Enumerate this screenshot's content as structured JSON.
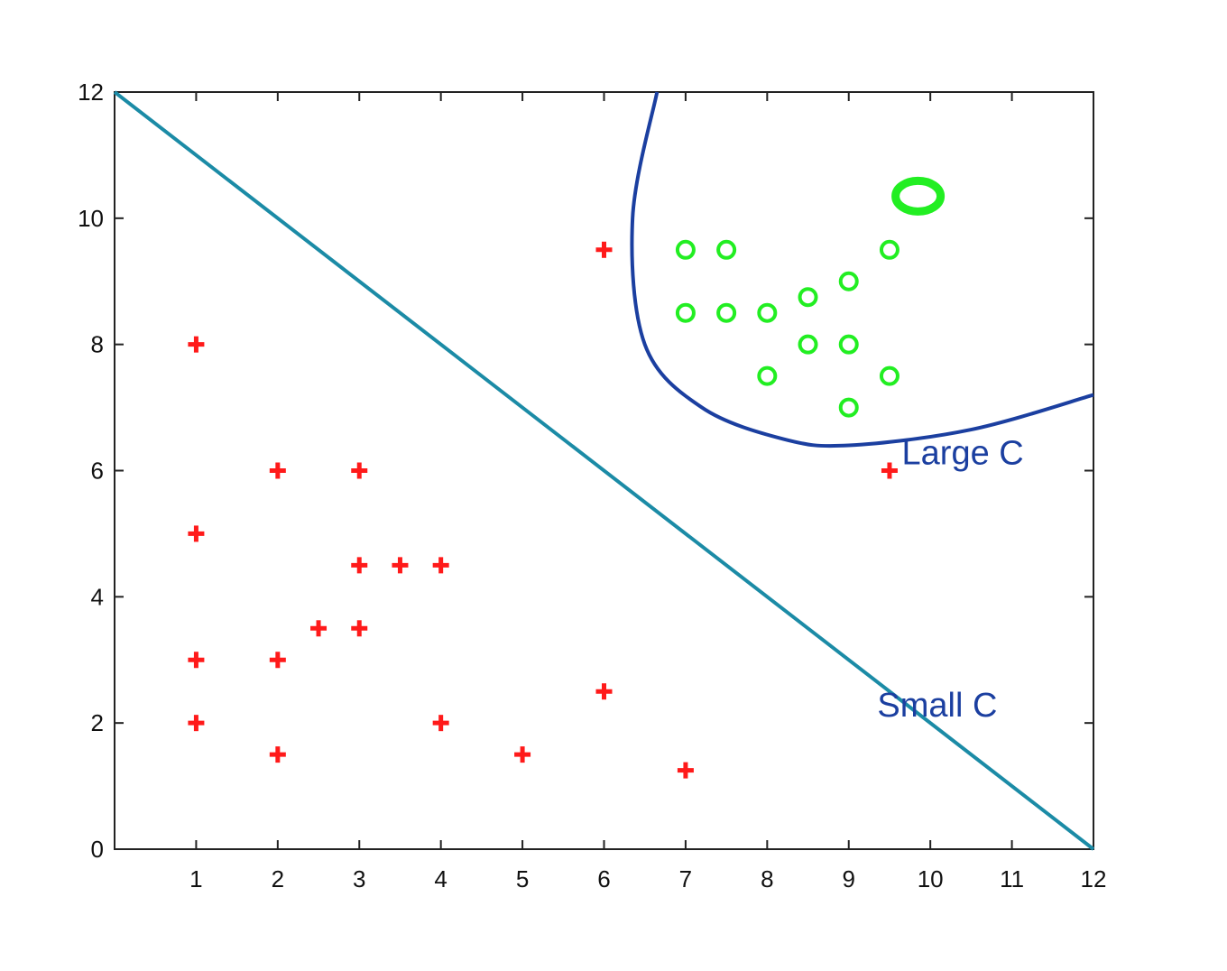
{
  "chart_data": {
    "type": "scatter",
    "title": "",
    "xlabel": "",
    "ylabel": "",
    "xlim": [
      0,
      12
    ],
    "ylim": [
      0,
      12
    ],
    "x_ticks": [
      1,
      2,
      3,
      4,
      5,
      6,
      7,
      8,
      9,
      10,
      11,
      12
    ],
    "y_ticks": [
      0,
      2,
      4,
      6,
      8,
      10,
      12
    ],
    "grid": false,
    "series": [
      {
        "marker": "plus",
        "color": "#ff1a1a",
        "points": [
          [
            1,
            8
          ],
          [
            1,
            5
          ],
          [
            1,
            3
          ],
          [
            1,
            2
          ],
          [
            2,
            6
          ],
          [
            2,
            3
          ],
          [
            2,
            1.5
          ],
          [
            2.5,
            3.5
          ],
          [
            3,
            6
          ],
          [
            3,
            4.5
          ],
          [
            3,
            3.5
          ],
          [
            3.5,
            4.5
          ],
          [
            4,
            4.5
          ],
          [
            4,
            2
          ],
          [
            5,
            1.5
          ],
          [
            6,
            9.5
          ],
          [
            6,
            2.5
          ],
          [
            7,
            1.25
          ],
          [
            9.5,
            6
          ]
        ]
      },
      {
        "marker": "circle",
        "color": "#22ee22",
        "points": [
          [
            7,
            9.5
          ],
          [
            7.5,
            9.5
          ],
          [
            9.5,
            9.5
          ],
          [
            9,
            9
          ],
          [
            8.5,
            8.75
          ],
          [
            7,
            8.5
          ],
          [
            7.5,
            8.5
          ],
          [
            8,
            8.5
          ],
          [
            8.5,
            8
          ],
          [
            9,
            8
          ],
          [
            8,
            7.5
          ],
          [
            9.5,
            7.5
          ],
          [
            9,
            7
          ]
        ]
      },
      {
        "marker": "circle-large",
        "color": "#22ee22",
        "points": [
          [
            9.85,
            10.35
          ]
        ]
      }
    ],
    "boundaries": [
      {
        "label": "Small C",
        "color": "#1b8ba6",
        "points": [
          [
            0,
            12
          ],
          [
            12,
            0
          ]
        ]
      },
      {
        "label": "Large C",
        "color": "#1b3fa0",
        "points": [
          [
            6.65,
            12
          ],
          [
            6.35,
            10
          ],
          [
            6.5,
            8
          ],
          [
            7.2,
            7
          ],
          [
            8.2,
            6.5
          ],
          [
            9.0,
            6.4
          ],
          [
            10.5,
            6.65
          ],
          [
            12,
            7.2
          ]
        ]
      }
    ],
    "annotations": [
      {
        "text": "Large C",
        "x": 9.65,
        "y": 6.1,
        "color": "#1b3fa0"
      },
      {
        "text": "Small C",
        "x": 9.35,
        "y": 2.1,
        "color": "#1b3fa0"
      }
    ]
  }
}
